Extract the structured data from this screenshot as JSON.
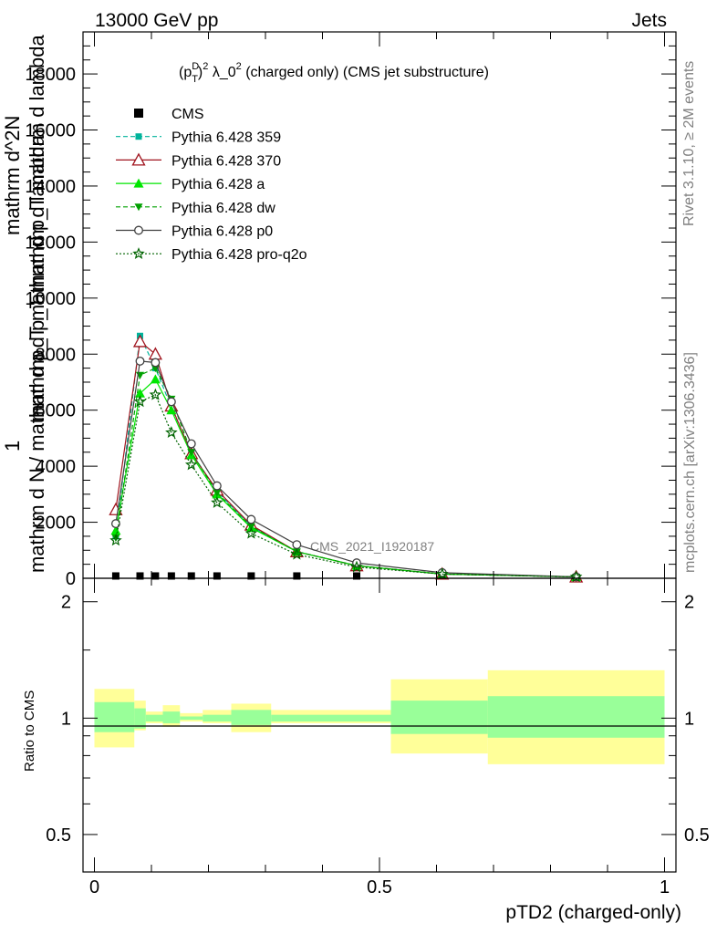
{
  "header": {
    "left": "13000 GeV pp",
    "right": "Jets"
  },
  "side": {
    "rivet": "Rivet 3.1.10, ≥ 2M events",
    "mcplots": "mcplots.cern.ch [arXiv:1306.3436]"
  },
  "colors": {
    "cms": "#000000",
    "p359": "#00b39b",
    "p370": "#a0141e",
    "pa": "#00e600",
    "pdw": "#00a000",
    "pp0": "#404040",
    "pq2o": "#006400",
    "band_inner": "#99ff99",
    "band_outer": "#ffff99"
  },
  "chart_data": [
    {
      "type": "line",
      "title": "(p_T^D)^2 λ_0^2 (charged only) (CMS jet substructure)",
      "title_parts": {
        "a": "(p",
        "sup1": "D",
        "sub1": "T",
        "b": ")",
        "sup2": "2",
        "c": " λ_0",
        "sup3": "2",
        "d": " (charged only) (CMS jet substructure)"
      },
      "ylabel_top": "1",
      "ylabel_lines": [
        "mathrm d N / mathrm d p_T mathrm d p_T mathrm d lambda",
        "mathrm d^2N",
        "mathrm d p_T mathrm d lambda"
      ],
      "watermark": "CMS_2021_I1920187",
      "xlim": [
        -0.02,
        1.02
      ],
      "ylim": [
        0,
        19500
      ],
      "yticks": [
        0,
        2000,
        4000,
        6000,
        8000,
        10000,
        12000,
        14000,
        16000,
        18000
      ],
      "ytick_labels": [
        "0",
        "2000",
        "4000",
        "6000",
        "8000",
        "10000",
        "12000",
        "14000",
        "16000",
        "18000"
      ],
      "x": [
        0.0375,
        0.08,
        0.107,
        0.135,
        0.17,
        0.215,
        0.275,
        0.355,
        0.46,
        0.61,
        0.845
      ],
      "cms": [
        50,
        50,
        50,
        50,
        50,
        50,
        50,
        50,
        50,
        null,
        null
      ],
      "series": [
        {
          "name": "CMS",
          "key": "cms",
          "style": "marker"
        },
        {
          "name": "Pythia 6.428 359",
          "key": "p359",
          "dash": "5,3",
          "marker": "square",
          "values": [
            1500,
            8650,
            7500,
            6100,
            4500,
            3100,
            1850,
            950,
            450,
            150,
            50
          ]
        },
        {
          "name": "Pythia 6.428 370",
          "key": "p370",
          "dash": "",
          "marker": "triangle-open",
          "values": [
            2450,
            8450,
            8000,
            6150,
            4450,
            3150,
            1900,
            950,
            450,
            150,
            50
          ]
        },
        {
          "name": "Pythia 6.428 a",
          "key": "pa",
          "dash": "",
          "marker": "triangle",
          "values": [
            1700,
            6600,
            7100,
            6000,
            4400,
            3000,
            1800,
            950,
            450,
            150,
            50
          ]
        },
        {
          "name": "Pythia 6.428 dw",
          "key": "pdw",
          "dash": "5,3",
          "marker": "triangle-down",
          "values": [
            1450,
            7250,
            7500,
            6400,
            4500,
            3050,
            1850,
            950,
            450,
            150,
            50
          ]
        },
        {
          "name": "Pythia 6.428 p0",
          "key": "pp0",
          "dash": "",
          "marker": "circle-open",
          "values": [
            1950,
            7750,
            7700,
            6300,
            4800,
            3300,
            2100,
            1200,
            550,
            200,
            50
          ]
        },
        {
          "name": "Pythia 6.428 pro-q2o",
          "key": "pq2o",
          "dash": "2,2",
          "marker": "star",
          "values": [
            1350,
            6300,
            6550,
            5200,
            4050,
            2700,
            1600,
            850,
            400,
            150,
            50
          ]
        }
      ]
    },
    {
      "type": "area",
      "ylabel": "Ratio to CMS",
      "xlabel": "pTD2 (charged-only)",
      "xlim": [
        -0.02,
        1.02
      ],
      "ylim": [
        0.4,
        2.3
      ],
      "yscale": "log",
      "yticks": [
        0.5,
        1,
        2
      ],
      "ytick_labels": [
        "0.5",
        "1",
        "2"
      ],
      "xticks": [
        0,
        0.5,
        1
      ],
      "xtick_labels": [
        "0",
        "0.5",
        "1"
      ],
      "bins": [
        {
          "lo": 0.0,
          "hi": 0.07,
          "inner": [
            0.92,
            1.1
          ],
          "outer": [
            0.84,
            1.19
          ]
        },
        {
          "lo": 0.07,
          "hi": 0.09,
          "inner": [
            0.94,
            1.06
          ],
          "outer": [
            0.93,
            1.11
          ]
        },
        {
          "lo": 0.09,
          "hi": 0.12,
          "inner": [
            0.98,
            1.02
          ],
          "outer": [
            0.97,
            1.04
          ]
        },
        {
          "lo": 0.12,
          "hi": 0.15,
          "inner": [
            0.97,
            1.04
          ],
          "outer": [
            0.95,
            1.08
          ]
        },
        {
          "lo": 0.15,
          "hi": 0.19,
          "inner": [
            0.99,
            1.01
          ],
          "outer": [
            0.98,
            1.03
          ]
        },
        {
          "lo": 0.19,
          "hi": 0.24,
          "inner": [
            0.98,
            1.02
          ],
          "outer": [
            0.97,
            1.05
          ]
        },
        {
          "lo": 0.24,
          "hi": 0.31,
          "inner": [
            0.96,
            1.05
          ],
          "outer": [
            0.92,
            1.09
          ]
        },
        {
          "lo": 0.31,
          "hi": 0.52,
          "inner": [
            0.98,
            1.02
          ],
          "outer": [
            0.97,
            1.05
          ]
        },
        {
          "lo": 0.52,
          "hi": 0.69,
          "inner": [
            0.91,
            1.11
          ],
          "outer": [
            0.81,
            1.26
          ]
        },
        {
          "lo": 0.69,
          "hi": 1.0,
          "inner": [
            0.89,
            1.14
          ],
          "outer": [
            0.76,
            1.33
          ]
        }
      ]
    }
  ]
}
